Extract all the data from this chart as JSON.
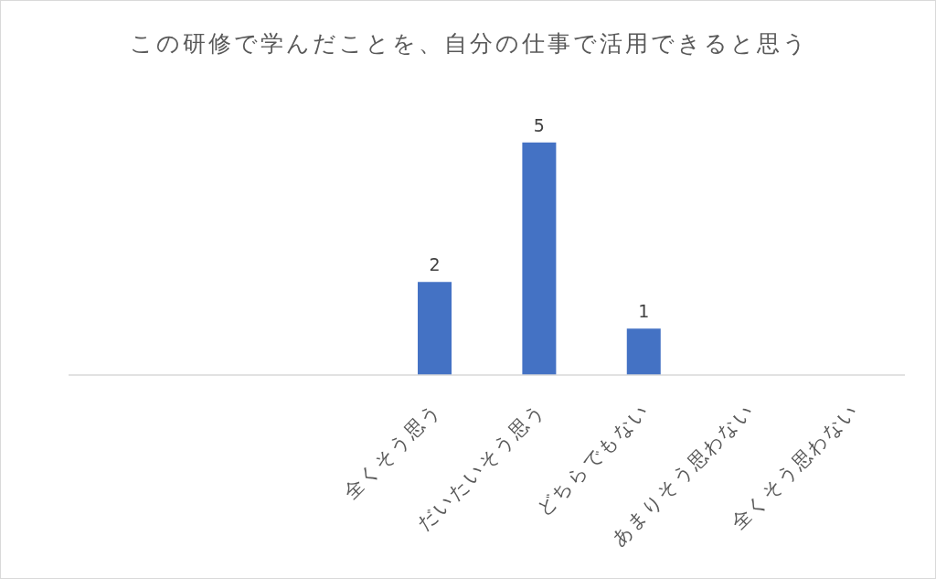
{
  "chart_data": {
    "type": "bar",
    "title": "この研修で学んだことを、自分の仕事で活用できると思う",
    "categories": [
      null,
      null,
      null,
      "全くそう思う",
      "だいたいそう思う",
      "どちらでもない",
      "あまりそう思わない",
      "全くそう思わない"
    ],
    "values": [
      null,
      null,
      null,
      2,
      5,
      1,
      null,
      null
    ],
    "color": "#4472c4",
    "data_labels": true,
    "tick_labels": "x"
  }
}
